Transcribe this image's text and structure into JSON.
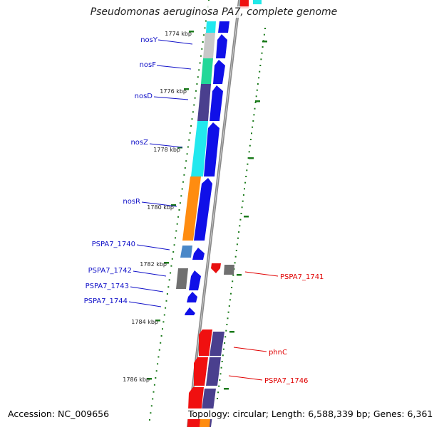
{
  "title": "Pseudomonas aeruginosa PA7, complete genome",
  "footer": {
    "accession": "Accession: NC_009656",
    "topology": "Topology: circular; Length: 6,588,339 bp; Genes: 6,361"
  },
  "colors": {
    "label_forward": "#1010c8",
    "label_reverse": "#e00000",
    "tick": "#1a7a1a",
    "backbone": "#888888"
  },
  "kbp_ticks": [
    "1774 kbp",
    "1776 kbp",
    "1778 kbp",
    "1780 kbp",
    "1782 kbp",
    "1784 kbp",
    "1786 kbp"
  ],
  "forward_genes": [
    {
      "name": "nosY"
    },
    {
      "name": "nosF"
    },
    {
      "name": "nosD"
    },
    {
      "name": "nosZ"
    },
    {
      "name": "nosR"
    },
    {
      "name": "PSPA7_1740"
    },
    {
      "name": "PSPA7_1742"
    },
    {
      "name": "PSPA7_1743"
    },
    {
      "name": "PSPA7_1744"
    }
  ],
  "reverse_genes": [
    {
      "name": "PSPA7_1741"
    },
    {
      "name": "phnC"
    },
    {
      "name": "PSPA7_1746"
    }
  ]
}
